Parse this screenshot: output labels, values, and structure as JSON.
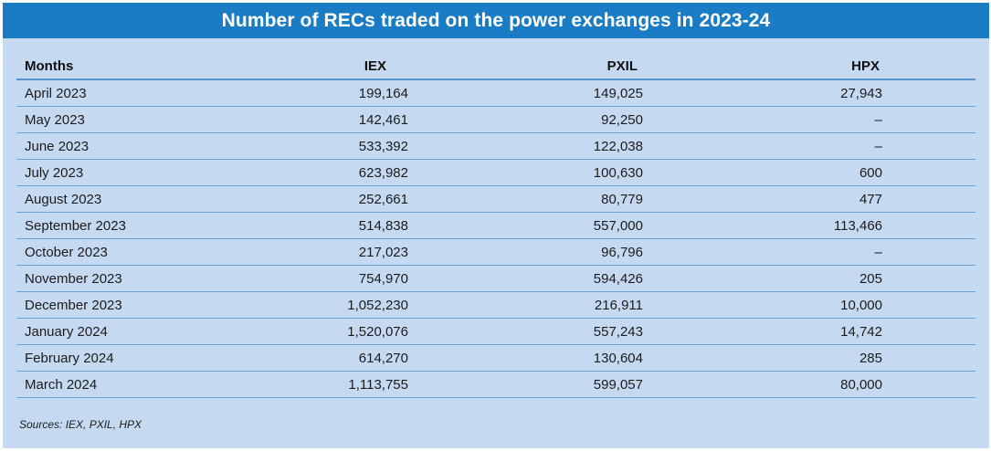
{
  "title": "Number of RECs traded on the power exchanges in 2023-24",
  "table": {
    "headers": {
      "months": "Months",
      "iex": "IEX",
      "pxil": "PXIL",
      "hpx": "HPX"
    },
    "rows": [
      {
        "month": "April 2023",
        "iex": "199,164",
        "pxil": "149,025",
        "hpx": "27,943"
      },
      {
        "month": "May 2023",
        "iex": "142,461",
        "pxil": "92,250",
        "hpx": "–"
      },
      {
        "month": "June 2023",
        "iex": "533,392",
        "pxil": "122,038",
        "hpx": "–"
      },
      {
        "month": "July 2023",
        "iex": "623,982",
        "pxil": "100,630",
        "hpx": "600"
      },
      {
        "month": "August 2023",
        "iex": "252,661",
        "pxil": "80,779",
        "hpx": "477"
      },
      {
        "month": "September 2023",
        "iex": "514,838",
        "pxil": "557,000",
        "hpx": "113,466"
      },
      {
        "month": "October 2023",
        "iex": "217,023",
        "pxil": "96,796",
        "hpx": "–"
      },
      {
        "month": "November 2023",
        "iex": "754,970",
        "pxil": "594,426",
        "hpx": "205"
      },
      {
        "month": "December 2023",
        "iex": "1,052,230",
        "pxil": "216,911",
        "hpx": "10,000"
      },
      {
        "month": "January 2024",
        "iex": "1,520,076",
        "pxil": "557,243",
        "hpx": "14,742"
      },
      {
        "month": "February 2024",
        "iex": "614,270",
        "pxil": "130,604",
        "hpx": "285"
      },
      {
        "month": "March 2024",
        "iex": "1,113,755",
        "pxil": "599,057",
        "hpx": "80,000"
      }
    ]
  },
  "footnote": "Sources: IEX, PXIL, HPX",
  "colors": {
    "title_bar": "#1a7cc4",
    "panel": "#c5d9f1",
    "rule": "#6a9fd3"
  }
}
